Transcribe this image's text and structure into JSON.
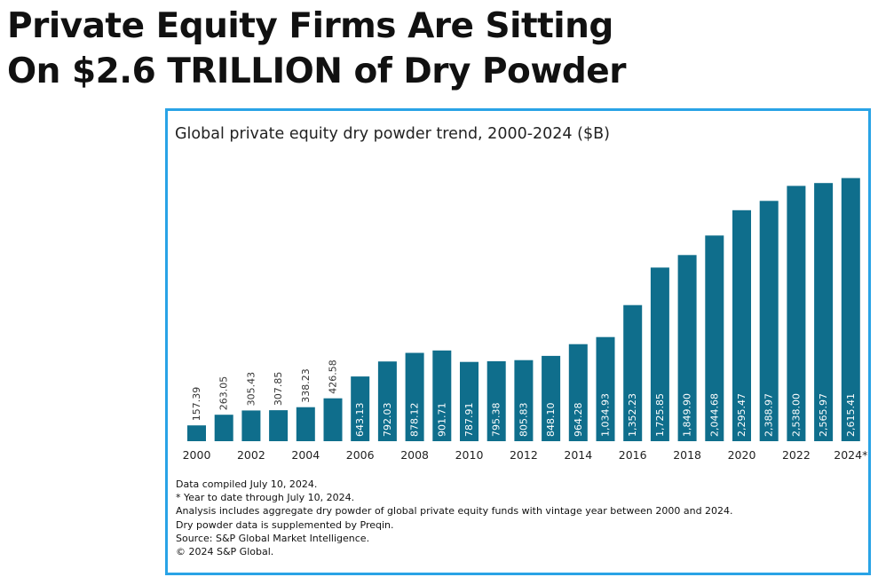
{
  "headline": {
    "line1": "Private Equity Firms Are Sitting",
    "line2": "On $2.6 TRILLION of Dry Powder"
  },
  "chart_data": {
    "type": "bar",
    "title": "Global private equity dry powder trend, 2000-2024 ($B)",
    "categories": [
      "2000",
      "2001",
      "2002",
      "2003",
      "2004",
      "2005",
      "2006",
      "2007",
      "2008",
      "2009",
      "2010",
      "2011",
      "2012",
      "2013",
      "2014",
      "2015",
      "2016",
      "2017",
      "2018",
      "2019",
      "2020",
      "2021",
      "2022",
      "2023",
      "2024*"
    ],
    "values": [
      157.39,
      263.05,
      305.43,
      307.85,
      338.23,
      426.58,
      643.13,
      792.03,
      878.12,
      901.71,
      787.91,
      795.38,
      805.83,
      848.1,
      964.28,
      1034.93,
      1352.23,
      1725.85,
      1849.9,
      2044.68,
      2295.47,
      2388.97,
      2538.0,
      2565.97,
      2615.41
    ],
    "value_labels": [
      "157.39",
      "263.05",
      "305.43",
      "307.85",
      "338.23",
      "426.58",
      "643.13",
      "792.03",
      "878.12",
      "901.71",
      "787.91",
      "795.38",
      "805.83",
      "848.10",
      "964.28",
      "1,034.93",
      "1,352.23",
      "1,725.85",
      "1,849.90",
      "2,044.68",
      "2,295.47",
      "2,388.97",
      "2,538.00",
      "2,565.97",
      "2,615.41"
    ],
    "x_tick_labels": [
      "2000",
      "2002",
      "2004",
      "2006",
      "2008",
      "2010",
      "2012",
      "2014",
      "2016",
      "2018",
      "2020",
      "2022",
      "2024*"
    ],
    "ylim": [
      0,
      2700
    ],
    "xlabel": "",
    "ylabel": "",
    "grid": false,
    "bar_color": "#0f6e8c"
  },
  "notes": [
    "Data compiled July 10, 2024.",
    "* Year to date through July 10, 2024.",
    "Analysis includes aggregate dry powder of global private equity funds with vintage year between 2000 and 2024.",
    "Dry powder data is supplemented by Preqin.",
    "Source: S&P Global Market Intelligence.",
    "© 2024 S&P Global."
  ]
}
